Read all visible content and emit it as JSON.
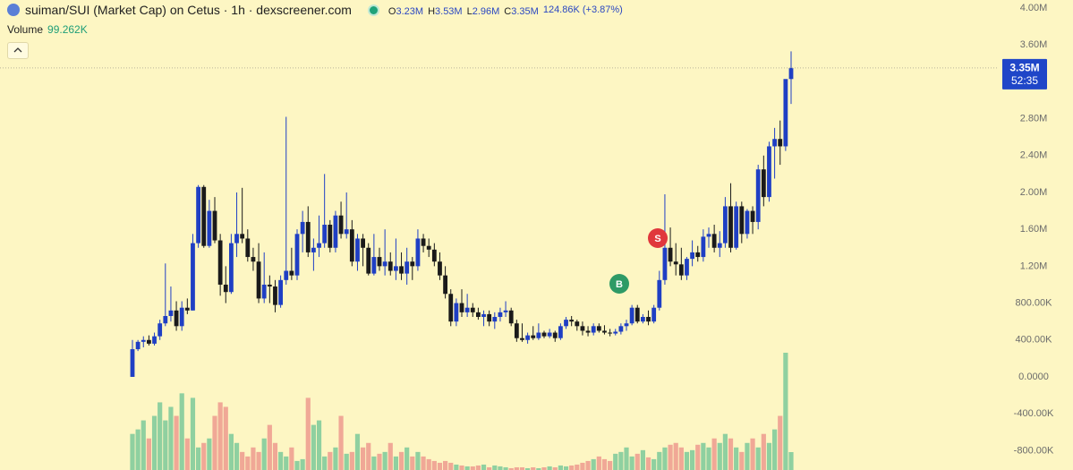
{
  "chart_data": {
    "type": "candlestick",
    "title": "suiman/SUI (Market Cap) on Cetus · 1h · dexscreener.com",
    "ohlc_legend": [
      {
        "key": "O",
        "value": "3.23M"
      },
      {
        "key": "H",
        "value": "3.53M"
      },
      {
        "key": "L",
        "value": "2.96M"
      },
      {
        "key": "C",
        "value": "3.35M"
      }
    ],
    "change": "124.86K (+3.87%)",
    "volume_title": "Volume",
    "volume_value": "99.262K",
    "price_label": "3.35M",
    "countdown": "52:35",
    "markers": [
      "B",
      "S"
    ],
    "up_color": "#1f3fc4",
    "down_color": "#1a1a1a",
    "volume_up_color": "#8fd0a0",
    "volume_down_color": "#f0a896",
    "ylim": [
      -1.01,
      4.087
    ],
    "yticks": [
      {
        "value": 4.0,
        "label": "4.00M"
      },
      {
        "value": 3.6,
        "label": "3.60M"
      },
      {
        "value": 2.8,
        "label": "2.80M"
      },
      {
        "value": 2.4,
        "label": "2.40M"
      },
      {
        "value": 2.0,
        "label": "2.00M"
      },
      {
        "value": 1.6,
        "label": "1.60M"
      },
      {
        "value": 1.2,
        "label": "1.20M"
      },
      {
        "value": 0.8,
        "label": "800.00K"
      },
      {
        "value": 0.4,
        "label": "400.00K"
      },
      {
        "value": 0,
        "label": "0.0000"
      },
      {
        "value": -0.4,
        "label": "-400.00K"
      },
      {
        "value": -0.8,
        "label": "-800.00K"
      }
    ],
    "candles": [
      [
        0.0,
        0.4,
        0.0,
        0.3
      ],
      [
        0.3,
        0.4,
        0.28,
        0.38
      ],
      [
        0.38,
        0.44,
        0.32,
        0.4
      ],
      [
        0.4,
        0.45,
        0.34,
        0.36
      ],
      [
        0.36,
        0.48,
        0.34,
        0.44
      ],
      [
        0.44,
        0.62,
        0.4,
        0.58
      ],
      [
        0.58,
        1.23,
        0.55,
        0.66
      ],
      [
        0.66,
        0.98,
        0.6,
        0.72
      ],
      [
        0.72,
        0.82,
        0.5,
        0.55
      ],
      [
        0.55,
        0.82,
        0.5,
        0.75
      ],
      [
        0.75,
        0.85,
        0.68,
        0.72
      ],
      [
        0.72,
        1.55,
        0.72,
        1.45
      ],
      [
        1.45,
        2.08,
        1.4,
        2.06
      ],
      [
        2.06,
        2.08,
        1.4,
        1.42
      ],
      [
        1.42,
        1.92,
        1.4,
        1.8
      ],
      [
        1.8,
        1.95,
        1.45,
        1.48
      ],
      [
        1.48,
        1.55,
        0.88,
        1.0
      ],
      [
        1.0,
        1.2,
        0.8,
        0.92
      ],
      [
        0.92,
        1.55,
        0.9,
        1.45
      ],
      [
        1.45,
        2.0,
        1.3,
        1.55
      ],
      [
        1.55,
        2.05,
        1.45,
        1.5
      ],
      [
        1.5,
        1.6,
        1.25,
        1.3
      ],
      [
        1.3,
        1.4,
        1.15,
        1.25
      ],
      [
        1.25,
        1.45,
        0.8,
        0.85
      ],
      [
        0.85,
        1.35,
        0.8,
        1.0
      ],
      [
        1.0,
        1.1,
        0.8,
        0.98
      ],
      [
        0.98,
        1.05,
        0.7,
        0.78
      ],
      [
        0.78,
        1.1,
        0.75,
        1.05
      ],
      [
        1.05,
        2.82,
        1.0,
        1.15
      ],
      [
        1.15,
        1.4,
        1.05,
        1.1
      ],
      [
        1.1,
        1.6,
        1.05,
        1.55
      ],
      [
        1.55,
        1.8,
        1.35,
        1.68
      ],
      [
        1.68,
        1.85,
        1.3,
        1.35
      ],
      [
        1.35,
        1.5,
        1.15,
        1.4
      ],
      [
        1.4,
        1.75,
        1.3,
        1.45
      ],
      [
        1.45,
        2.2,
        1.4,
        1.65
      ],
      [
        1.65,
        1.7,
        1.35,
        1.4
      ],
      [
        1.4,
        1.8,
        1.35,
        1.75
      ],
      [
        1.75,
        1.9,
        1.5,
        1.55
      ],
      [
        1.55,
        2.0,
        1.5,
        1.6
      ],
      [
        1.6,
        1.7,
        1.2,
        1.25
      ],
      [
        1.25,
        1.55,
        1.15,
        1.5
      ],
      [
        1.5,
        1.55,
        1.2,
        1.4
      ],
      [
        1.4,
        1.45,
        1.1,
        1.12
      ],
      [
        1.12,
        1.55,
        1.1,
        1.3
      ],
      [
        1.3,
        1.4,
        1.15,
        1.2
      ],
      [
        1.2,
        1.6,
        1.1,
        1.25
      ],
      [
        1.25,
        1.35,
        1.1,
        1.15
      ],
      [
        1.15,
        1.5,
        1.05,
        1.2
      ],
      [
        1.2,
        1.35,
        1.05,
        1.12
      ],
      [
        1.12,
        1.4,
        1.0,
        1.25
      ],
      [
        1.25,
        1.3,
        1.05,
        1.2
      ],
      [
        1.2,
        1.6,
        1.15,
        1.5
      ],
      [
        1.5,
        1.55,
        1.35,
        1.42
      ],
      [
        1.42,
        1.5,
        1.3,
        1.38
      ],
      [
        1.38,
        1.45,
        1.2,
        1.25
      ],
      [
        1.25,
        1.35,
        1.05,
        1.1
      ],
      [
        1.1,
        1.2,
        0.85,
        0.9
      ],
      [
        0.9,
        0.95,
        0.55,
        0.6
      ],
      [
        0.6,
        0.85,
        0.55,
        0.8
      ],
      [
        0.8,
        0.95,
        0.65,
        0.7
      ],
      [
        0.7,
        0.9,
        0.65,
        0.75
      ],
      [
        0.75,
        0.8,
        0.65,
        0.7
      ],
      [
        0.7,
        0.75,
        0.62,
        0.65
      ],
      [
        0.65,
        0.72,
        0.55,
        0.68
      ],
      [
        0.68,
        0.72,
        0.55,
        0.6
      ],
      [
        0.6,
        0.7,
        0.52,
        0.65
      ],
      [
        0.65,
        0.75,
        0.6,
        0.7
      ],
      [
        0.7,
        0.82,
        0.65,
        0.72
      ],
      [
        0.72,
        0.75,
        0.55,
        0.58
      ],
      [
        0.58,
        0.62,
        0.38,
        0.42
      ],
      [
        0.42,
        0.58,
        0.38,
        0.4
      ],
      [
        0.4,
        0.48,
        0.36,
        0.45
      ],
      [
        0.45,
        0.55,
        0.4,
        0.42
      ],
      [
        0.42,
        0.58,
        0.4,
        0.48
      ],
      [
        0.48,
        0.5,
        0.42,
        0.44
      ],
      [
        0.44,
        0.52,
        0.42,
        0.48
      ],
      [
        0.48,
        0.5,
        0.38,
        0.42
      ],
      [
        0.42,
        0.58,
        0.4,
        0.55
      ],
      [
        0.55,
        0.65,
        0.52,
        0.62
      ],
      [
        0.62,
        0.66,
        0.55,
        0.6
      ],
      [
        0.6,
        0.62,
        0.5,
        0.55
      ],
      [
        0.55,
        0.6,
        0.45,
        0.5
      ],
      [
        0.5,
        0.55,
        0.44,
        0.48
      ],
      [
        0.48,
        0.58,
        0.45,
        0.55
      ],
      [
        0.55,
        0.58,
        0.48,
        0.5
      ],
      [
        0.5,
        0.56,
        0.46,
        0.48
      ],
      [
        0.48,
        0.52,
        0.44,
        0.47
      ],
      [
        0.47,
        0.52,
        0.45,
        0.49
      ],
      [
        0.49,
        0.58,
        0.46,
        0.55
      ],
      [
        0.55,
        0.62,
        0.5,
        0.58
      ],
      [
        0.58,
        0.78,
        0.56,
        0.75
      ],
      [
        0.75,
        0.78,
        0.58,
        0.6
      ],
      [
        0.6,
        0.68,
        0.58,
        0.65
      ],
      [
        0.65,
        0.72,
        0.56,
        0.6
      ],
      [
        0.6,
        0.78,
        0.58,
        0.75
      ],
      [
        0.75,
        1.15,
        0.72,
        1.05
      ],
      [
        1.05,
        1.98,
        1.0,
        1.4
      ],
      [
        1.4,
        1.62,
        1.2,
        1.25
      ],
      [
        1.25,
        1.45,
        1.1,
        1.22
      ],
      [
        1.22,
        1.4,
        1.05,
        1.1
      ],
      [
        1.1,
        1.3,
        1.05,
        1.28
      ],
      [
        1.28,
        1.48,
        1.2,
        1.35
      ],
      [
        1.35,
        1.42,
        1.25,
        1.3
      ],
      [
        1.3,
        1.6,
        1.25,
        1.52
      ],
      [
        1.52,
        1.62,
        1.4,
        1.55
      ],
      [
        1.55,
        1.65,
        1.35,
        1.4
      ],
      [
        1.4,
        1.58,
        1.3,
        1.45
      ],
      [
        1.45,
        1.95,
        1.4,
        1.85
      ],
      [
        1.85,
        2.1,
        1.35,
        1.4
      ],
      [
        1.4,
        1.9,
        1.38,
        1.85
      ],
      [
        1.85,
        1.9,
        1.45,
        1.55
      ],
      [
        1.55,
        1.82,
        1.5,
        1.8
      ],
      [
        1.8,
        1.85,
        1.55,
        1.68
      ],
      [
        1.68,
        2.3,
        1.6,
        2.25
      ],
      [
        2.25,
        2.4,
        1.85,
        1.95
      ],
      [
        1.95,
        2.55,
        1.9,
        2.5
      ],
      [
        2.5,
        2.7,
        2.15,
        2.58
      ],
      [
        2.58,
        2.78,
        2.3,
        2.5
      ],
      [
        2.5,
        3.2,
        2.45,
        3.23
      ],
      [
        3.23,
        3.53,
        2.96,
        3.35
      ]
    ],
    "volume": [
      200000,
      225000,
      275000,
      175000,
      300000,
      375000,
      275000,
      350000,
      300000,
      425000,
      175000,
      400000,
      125000,
      150000,
      175000,
      300000,
      375000,
      350000,
      200000,
      150000,
      100000,
      75000,
      125000,
      100000,
      175000,
      250000,
      150000,
      100000,
      75000,
      125000,
      50000,
      60000,
      400000,
      250000,
      275000,
      75000,
      100000,
      125000,
      300000,
      90000,
      100000,
      200000,
      125000,
      150000,
      75000,
      90000,
      100000,
      150000,
      75000,
      100000,
      125000,
      75000,
      100000,
      75000,
      60000,
      50000,
      40000,
      50000,
      40000,
      30000,
      25000,
      20000,
      20000,
      25000,
      30000,
      15000,
      25000,
      20000,
      15000,
      10000,
      15000,
      15000,
      10000,
      15000,
      10000,
      15000,
      20000,
      15000,
      25000,
      20000,
      25000,
      30000,
      40000,
      50000,
      60000,
      75000,
      60000,
      50000,
      90000,
      100000,
      125000,
      75000,
      90000,
      110000,
      70000,
      60000,
      100000,
      125000,
      140000,
      150000,
      125000,
      100000,
      110000,
      140000,
      150000,
      125000,
      175000,
      150000,
      200000,
      175000,
      125000,
      100000,
      150000,
      175000,
      125000,
      200000,
      150000,
      225000,
      300000,
      650000,
      99262
    ]
  }
}
